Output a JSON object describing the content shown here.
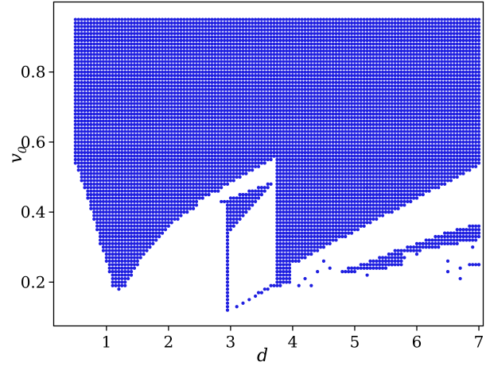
{
  "chart_data": {
    "type": "scatter",
    "xlabel": "d",
    "ylabel": "v",
    "ylabel_subscript": "0",
    "xlim": [
      0.15,
      7.07
    ],
    "ylim": [
      0.075,
      1.0
    ],
    "xticks": [
      1,
      2,
      3,
      4,
      5,
      6,
      7
    ],
    "xtick_labels": [
      "1",
      "2",
      "3",
      "4",
      "5",
      "6",
      "7"
    ],
    "yticks": [
      0.2,
      0.4,
      0.6,
      0.8
    ],
    "ytick_labels": [
      "0.2",
      "0.4",
      "0.6",
      "0.8"
    ],
    "grid": false,
    "marker_color": "#1f1fe0",
    "grid_spacing": {
      "dx": 0.05,
      "dy": 0.01
    },
    "x_range": [
      0.5,
      7.0
    ],
    "y_top": 0.95,
    "lower_boundary": [
      {
        "x": 0.5,
        "y": 0.54
      },
      {
        "x": 0.6,
        "y": 0.49
      },
      {
        "x": 0.7,
        "y": 0.44
      },
      {
        "x": 0.8,
        "y": 0.38
      },
      {
        "x": 0.9,
        "y": 0.31
      },
      {
        "x": 1.0,
        "y": 0.26
      },
      {
        "x": 1.1,
        "y": 0.19
      },
      {
        "x": 1.2,
        "y": 0.18
      },
      {
        "x": 1.3,
        "y": 0.19
      },
      {
        "x": 1.4,
        "y": 0.22
      },
      {
        "x": 1.5,
        "y": 0.25
      },
      {
        "x": 1.7,
        "y": 0.3
      },
      {
        "x": 2.0,
        "y": 0.36
      },
      {
        "x": 2.3,
        "y": 0.4
      },
      {
        "x": 2.5,
        "y": 0.42
      },
      {
        "x": 2.9,
        "y": 0.43
      },
      {
        "x": 3.0,
        "y": 0.12
      },
      {
        "x": 3.3,
        "y": 0.15
      },
      {
        "x": 3.6,
        "y": 0.18
      },
      {
        "x": 4.0,
        "y": 0.2
      },
      {
        "x": 4.5,
        "y": 0.22
      },
      {
        "x": 5.0,
        "y": 0.23
      },
      {
        "x": 6.0,
        "y": 0.25
      },
      {
        "x": 7.0,
        "y": 0.25
      }
    ],
    "excluded_bands": [
      {
        "x_start": 2.5,
        "x_end": 3.7,
        "y_lower_start": 0.41,
        "y_lower_end": 0.49,
        "y_upper_start": 0.43,
        "y_upper_end": 0.55
      },
      {
        "x_start": 3.0,
        "x_end": 3.7,
        "y_lower_start": 0.12,
        "y_lower_end": 0.2,
        "y_upper_start": 0.34,
        "y_upper_end": 0.49
      },
      {
        "x_start": 4.0,
        "x_end": 7.0,
        "y_lower_start": 0.18,
        "y_lower_end": 0.38,
        "y_upper_start": 0.25,
        "y_upper_end": 0.53
      },
      {
        "x_start": 5.3,
        "x_end": 7.0,
        "y_lower_start": 0.28,
        "y_lower_end": 0.37,
        "y_upper_start": 0.34,
        "y_upper_end": 0.46
      },
      {
        "x_start": 5.8,
        "x_end": 7.0,
        "y_lower_start": 0.2,
        "y_lower_end": 0.26,
        "y_upper_start": 0.28,
        "y_upper_end": 0.32
      }
    ],
    "scattered_points": [
      {
        "x": 4.1,
        "y": 0.19
      },
      {
        "x": 4.2,
        "y": 0.21
      },
      {
        "x": 4.3,
        "y": 0.19
      },
      {
        "x": 4.4,
        "y": 0.23
      },
      {
        "x": 4.5,
        "y": 0.26
      },
      {
        "x": 4.6,
        "y": 0.24
      },
      {
        "x": 5.2,
        "y": 0.22
      },
      {
        "x": 5.4,
        "y": 0.25
      },
      {
        "x": 5.5,
        "y": 0.26
      },
      {
        "x": 5.6,
        "y": 0.25
      },
      {
        "x": 5.8,
        "y": 0.27
      },
      {
        "x": 6.0,
        "y": 0.28
      },
      {
        "x": 6.5,
        "y": 0.26
      },
      {
        "x": 6.5,
        "y": 0.23
      },
      {
        "x": 6.7,
        "y": 0.21
      },
      {
        "x": 6.7,
        "y": 0.24
      },
      {
        "x": 6.9,
        "y": 0.3
      },
      {
        "x": 7.0,
        "y": 0.25
      },
      {
        "x": 5.2,
        "y": 0.47
      },
      {
        "x": 5.3,
        "y": 0.44
      },
      {
        "x": 5.4,
        "y": 0.45
      },
      {
        "x": 5.5,
        "y": 0.42
      },
      {
        "x": 5.6,
        "y": 0.48
      },
      {
        "x": 5.7,
        "y": 0.46
      },
      {
        "x": 5.8,
        "y": 0.48
      },
      {
        "x": 5.9,
        "y": 0.43
      }
    ]
  }
}
